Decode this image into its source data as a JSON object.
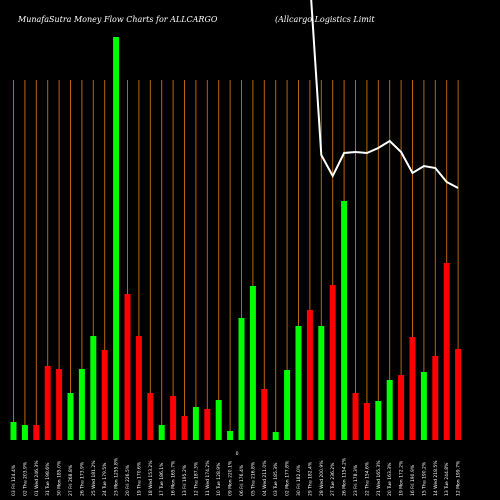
{
  "chart_data": {
    "type": "bar",
    "title": "MunafaSutra  Money Flow  Charts for ALLCARGO",
    "subtitle": "(Allcargo  Logistics Limit",
    "annotation": "0",
    "categories": [
      "03 Fri 124.4%",
      "02 Thu 203.9%",
      "01 Wed 246.3%",
      "31 Tue 198.6%",
      "30 Mon 185.0%",
      "27 Fri 268.8%",
      "26 Thu 173.9%",
      "25 Wed 181.2%",
      "24 Tue 179.5%",
      "23 Mon 1255.8%",
      "20 Fri 226.5%",
      "19 Thu 170.6%",
      "18 Wed 153.2%",
      "17 Tue 186.1%",
      "16 Mon 165.7%",
      "13 Fri 195.2%",
      "12 Thu 187.3%",
      "11 Wed 174.2%",
      "10 Tue 128.9%",
      "09 Mon 220.1%",
      "06 Fri 176.4%",
      "05 Thu 216.8%",
      "04 Wed 211.0%",
      "03 Tue 185.3%",
      "02 Mon 177.8%",
      "30 Fri 182.0%",
      "29 Thu 182.4%",
      "28 Wed 200.9%",
      "27 Tue 236.2%",
      "26 Mon 1154.2%",
      "23 Fri 178.3%",
      "22 Thu 154.6%",
      "21 Wed 165.3%",
      "20 Tue 163.3%",
      "19 Mon 172.2%",
      "16 Fri 190.9%",
      "15 Thu 190.2%",
      "14 Wed 218.5%",
      "13 Tue 244.8%",
      "12 Mon 199.7%"
    ],
    "series": [
      {
        "name": "Money Flow",
        "colors": [
          "#00ff00",
          "#00ff00",
          "#ff0000",
          "#ff0000",
          "#ff0000",
          "#00ff00",
          "#00ff00",
          "#00ff00",
          "#ff0000",
          "#00ff00",
          "#ff0000",
          "#ff0000",
          "#ff0000",
          "#00ff00",
          "#ff0000",
          "#ff0000",
          "#00ff00",
          "#ff0000",
          "#00ff00",
          "#00ff00",
          "#00ff00",
          "#00ff00",
          "#ff0000",
          "#00ff00",
          "#00ff00",
          "#00ff00",
          "#ff0000",
          "#00ff00",
          "#ff0000",
          "#00ff00",
          "#ff0000",
          "#ff0000",
          "#00ff00",
          "#00ff00",
          "#ff0000",
          "#ff0000",
          "#00ff00",
          "#ff0000",
          "#ff0000",
          "#ff0000"
        ],
        "values": [
          18,
          15,
          15,
          74,
          71,
          47,
          71,
          104,
          90,
          403,
          146,
          104,
          47,
          15,
          44,
          24,
          33,
          31,
          40,
          9,
          122,
          154,
          51,
          8,
          70,
          114,
          130,
          114,
          155,
          239,
          47,
          37,
          39,
          60,
          65,
          103,
          68,
          84,
          177,
          91
        ]
      },
      {
        "name": "Price",
        "color": "#ffffff",
        "axis": "y2",
        "values": [
          null,
          null,
          null,
          null,
          null,
          null,
          null,
          null,
          null,
          null,
          null,
          null,
          null,
          null,
          null,
          null,
          null,
          null,
          null,
          null,
          null,
          null,
          null,
          null,
          null,
          null,
          460,
          285,
          264,
          287,
          288,
          287,
          292,
          299,
          288,
          267,
          274,
          272,
          258,
          252
        ]
      }
    ],
    "ylim": [
      0,
      440
    ],
    "y2lim": [
      0,
      440
    ]
  }
}
